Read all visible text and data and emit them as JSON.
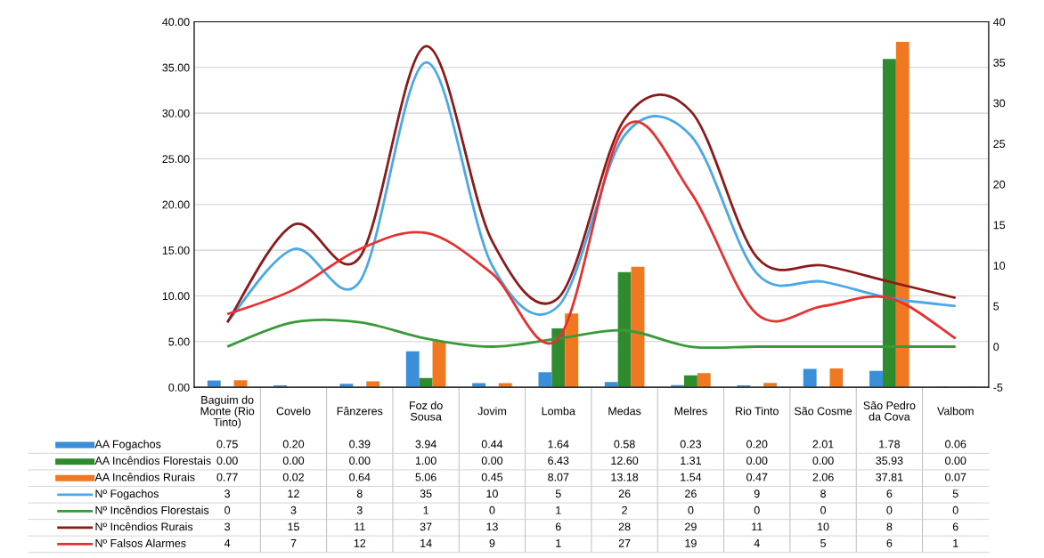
{
  "chart_data": {
    "type": "bar",
    "categories": [
      "Baguim do Monte (Rio Tinto)",
      "Covelo",
      "Fânzeres",
      "Foz do Sousa",
      "Jovim",
      "Lomba",
      "Medas",
      "Melres",
      "Rio Tinto",
      "São Cosme",
      "São Pedro da Cova",
      "Valbom"
    ],
    "series": [
      {
        "name": "AA Fogachos",
        "color": "#3a8fd8",
        "values": [
          0.75,
          0.2,
          0.39,
          3.94,
          0.44,
          1.64,
          0.58,
          0.23,
          0.2,
          2.01,
          1.78,
          0.06
        ],
        "value_labels": [
          "0.75",
          "0.20",
          "0.39",
          "3.94",
          "0.44",
          "1.64",
          "0.58",
          "0.23",
          "0.20",
          "2.01",
          "1.78",
          "0.06"
        ]
      },
      {
        "name": "AA Incêndios Florestais",
        "color": "#2e8b2e",
        "values": [
          0.0,
          0.0,
          0.0,
          1.0,
          0.0,
          6.43,
          12.6,
          1.31,
          0.0,
          0.0,
          35.93,
          0.0
        ],
        "value_labels": [
          "0.00",
          "0.00",
          "0.00",
          "1.00",
          "0.00",
          "6.43",
          "12.60",
          "1.31",
          "0.00",
          "0.00",
          "35.93",
          "0.00"
        ]
      },
      {
        "name": "AA Incêndios Rurais",
        "color": "#f07820",
        "values": [
          0.77,
          0.02,
          0.64,
          5.06,
          0.45,
          8.07,
          13.18,
          1.54,
          0.47,
          2.06,
          37.81,
          0.07
        ],
        "value_labels": [
          "0.77",
          "0.02",
          "0.64",
          "5.06",
          "0.45",
          "8.07",
          "13.18",
          "1.54",
          "0.47",
          "2.06",
          "37.81",
          "0.07"
        ]
      },
      {
        "name": "Nº Fogachos",
        "type": "line",
        "axis": "y2",
        "color": "#4aa8e8",
        "values": [
          3,
          12,
          8,
          35,
          10,
          5,
          26,
          26,
          9,
          8,
          6,
          5
        ],
        "value_labels": [
          "3",
          "12",
          "8",
          "35",
          "10",
          "5",
          "26",
          "26",
          "9",
          "8",
          "6",
          "5"
        ]
      },
      {
        "name": "Nº Incêndios Florestais",
        "type": "line",
        "axis": "y2",
        "color": "#3a9a3a",
        "values": [
          0,
          3,
          3,
          1,
          0,
          1,
          2,
          0,
          0,
          0,
          0,
          0
        ],
        "value_labels": [
          "0",
          "3",
          "3",
          "1",
          "0",
          "1",
          "2",
          "0",
          "0",
          "0",
          "0",
          "0"
        ]
      },
      {
        "name": "Nº Incêndios Rurais",
        "type": "line",
        "axis": "y2",
        "color": "#8b1a1a",
        "values": [
          3,
          15,
          11,
          37,
          13,
          6,
          28,
          29,
          11,
          10,
          8,
          6
        ],
        "value_labels": [
          "3",
          "15",
          "11",
          "37",
          "13",
          "6",
          "28",
          "29",
          "11",
          "10",
          "8",
          "6"
        ]
      },
      {
        "name": "Nº Falsos Alarmes",
        "type": "line",
        "axis": "y2",
        "color": "#e83030",
        "values": [
          4,
          7,
          12,
          14,
          9,
          1,
          27,
          19,
          4,
          5,
          6,
          1
        ],
        "value_labels": [
          "4",
          "7",
          "12",
          "14",
          "9",
          "1",
          "27",
          "19",
          "4",
          "5",
          "6",
          "1"
        ]
      }
    ],
    "ylim": [
      0,
      40
    ],
    "yticks": [
      {
        "value": 0,
        "label": "0.00"
      },
      {
        "value": 5,
        "label": "5.00"
      },
      {
        "value": 10,
        "label": "10.00"
      },
      {
        "value": 15,
        "label": "15.00"
      },
      {
        "value": 20,
        "label": "20.00"
      },
      {
        "value": 25,
        "label": "25.00"
      },
      {
        "value": 30,
        "label": "30.00"
      },
      {
        "value": 35,
        "label": "35.00"
      },
      {
        "value": 40,
        "label": "40.00"
      }
    ],
    "y2lim": [
      -5,
      40
    ],
    "y2ticks": [
      -5,
      0,
      5,
      10,
      15,
      20,
      25,
      30,
      35,
      40
    ],
    "grid": "y",
    "legend": "bottom left"
  }
}
